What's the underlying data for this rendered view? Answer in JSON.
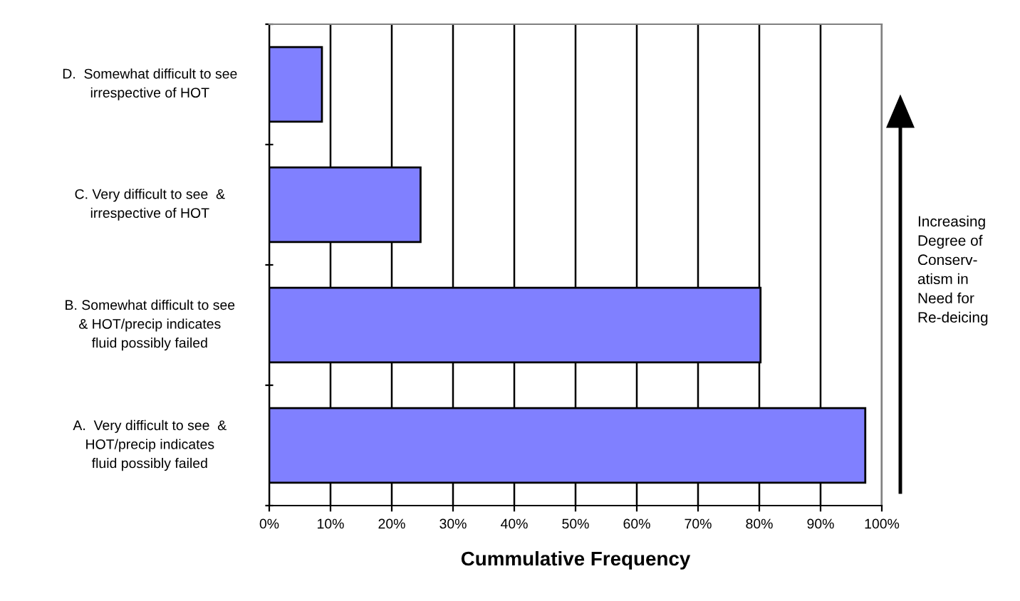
{
  "chart_data": {
    "type": "bar",
    "orientation": "horizontal",
    "categories": [
      "D.  Somewhat difficult to see\nirrespective of HOT",
      "C. Very difficult to see  &\nirrespective of HOT",
      "B. Somewhat difficult to see\n& HOT/precip indicates\nfluid possibly failed",
      "A.  Very difficult to see  &\nHOT/precip indicates\nfluid possibly failed"
    ],
    "values": [
      8.6,
      24.7,
      80.2,
      97.3
    ],
    "color": "#8080ff",
    "xlabel": "Cummulative Frequency",
    "xlim": [
      0,
      100
    ],
    "xticks": [
      {
        "value": 0,
        "label": "0%"
      },
      {
        "value": 10,
        "label": "10%"
      },
      {
        "value": 20,
        "label": "20%"
      },
      {
        "value": 30,
        "label": "30%"
      },
      {
        "value": 40,
        "label": "40%"
      },
      {
        "value": 50,
        "label": "50%"
      },
      {
        "value": 60,
        "label": "60%"
      },
      {
        "value": 70,
        "label": "70%"
      },
      {
        "value": 80,
        "label": "80%"
      },
      {
        "value": 90,
        "label": "90%"
      },
      {
        "value": 100,
        "label": "100%"
      }
    ],
    "grid": "x",
    "annotations": [
      "Increasing\nDegree of\nConserv-\natism in\nNeed for\nRe-deicing"
    ]
  }
}
